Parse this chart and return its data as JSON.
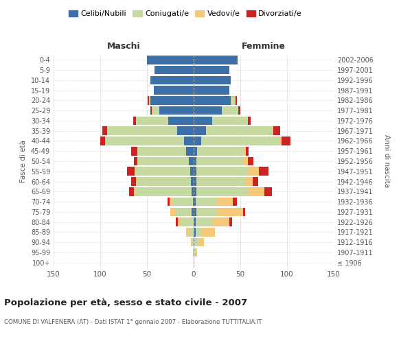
{
  "age_groups": [
    "100+",
    "95-99",
    "90-94",
    "85-89",
    "80-84",
    "75-79",
    "70-74",
    "65-69",
    "60-64",
    "55-59",
    "50-54",
    "45-49",
    "40-44",
    "35-39",
    "30-34",
    "25-29",
    "20-24",
    "15-19",
    "10-14",
    "5-9",
    "0-4"
  ],
  "birth_years": [
    "≤ 1906",
    "1907-1911",
    "1912-1916",
    "1917-1921",
    "1922-1926",
    "1927-1931",
    "1932-1936",
    "1937-1941",
    "1942-1946",
    "1947-1951",
    "1952-1956",
    "1957-1961",
    "1962-1966",
    "1967-1971",
    "1972-1976",
    "1977-1981",
    "1982-1986",
    "1987-1991",
    "1992-1996",
    "1997-2001",
    "2002-2006"
  ],
  "maschi": {
    "celibe": [
      0,
      0,
      0,
      0,
      0,
      2,
      1,
      2,
      3,
      4,
      5,
      8,
      10,
      18,
      27,
      37,
      46,
      43,
      46,
      42,
      50
    ],
    "coniugato": [
      0,
      1,
      2,
      5,
      14,
      18,
      22,
      60,
      58,
      58,
      55,
      52,
      85,
      75,
      35,
      8,
      2,
      0,
      0,
      0,
      0
    ],
    "vedovo": [
      0,
      0,
      1,
      3,
      3,
      5,
      3,
      2,
      1,
      1,
      0,
      0,
      0,
      0,
      0,
      0,
      0,
      0,
      0,
      0,
      0
    ],
    "divorziato": [
      0,
      0,
      0,
      0,
      2,
      0,
      2,
      5,
      5,
      8,
      4,
      7,
      5,
      5,
      3,
      1,
      1,
      0,
      0,
      0,
      0
    ]
  },
  "femmine": {
    "nubile": [
      0,
      0,
      1,
      2,
      2,
      3,
      2,
      3,
      3,
      3,
      3,
      4,
      8,
      13,
      20,
      30,
      40,
      38,
      40,
      38,
      47
    ],
    "coniugata": [
      0,
      2,
      4,
      7,
      18,
      22,
      22,
      55,
      52,
      55,
      50,
      50,
      85,
      72,
      38,
      18,
      5,
      0,
      0,
      0,
      0
    ],
    "vedova": [
      1,
      2,
      6,
      14,
      18,
      28,
      18,
      18,
      8,
      12,
      5,
      2,
      1,
      0,
      0,
      0,
      0,
      0,
      0,
      0,
      0
    ],
    "divorziata": [
      0,
      0,
      0,
      0,
      3,
      2,
      4,
      8,
      6,
      10,
      6,
      3,
      10,
      8,
      3,
      2,
      1,
      0,
      0,
      0,
      0
    ]
  },
  "colors": {
    "celibe": "#3d6fa8",
    "coniugato": "#c5d9a0",
    "vedovo": "#f5c87a",
    "divorziato": "#cc2222"
  },
  "xlim": 150,
  "title": "Popolazione per età, sesso e stato civile - 2007",
  "subtitle": "COMUNE DI VALFENERA (AT) - Dati ISTAT 1° gennaio 2007 - Elaborazione TUTTITALIA.IT",
  "ylabel": "Fasce di età",
  "right_label": "Anni di nascita",
  "legend_labels": [
    "Celibi/Nubili",
    "Coniugati/e",
    "Vedovi/e",
    "Divorziati/e"
  ],
  "maschi_label": "Maschi",
  "femmine_label": "Femmine"
}
